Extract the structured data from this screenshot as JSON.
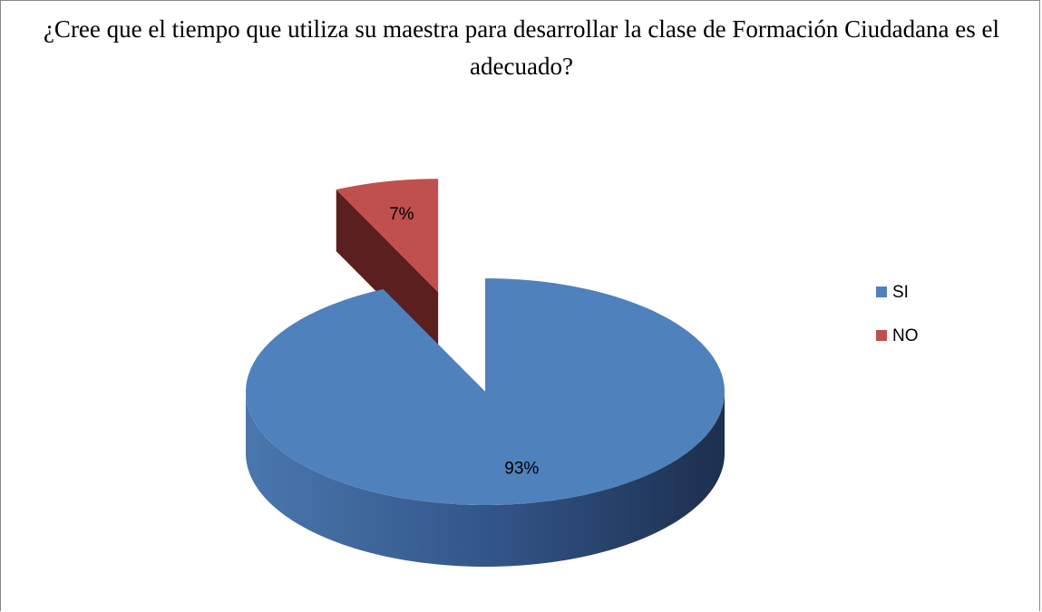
{
  "chart_data": {
    "type": "pie",
    "title": "¿Cree que  el tiempo que utiliza su maestra para desarrollar la clase de Formación Ciudadana es el adecuado?",
    "categories": [
      "SI",
      "NO"
    ],
    "values": [
      93,
      7
    ],
    "value_labels": [
      "93%",
      "7%"
    ],
    "colors": [
      "#4f81bd",
      "#c0504d"
    ],
    "legend": "right"
  }
}
